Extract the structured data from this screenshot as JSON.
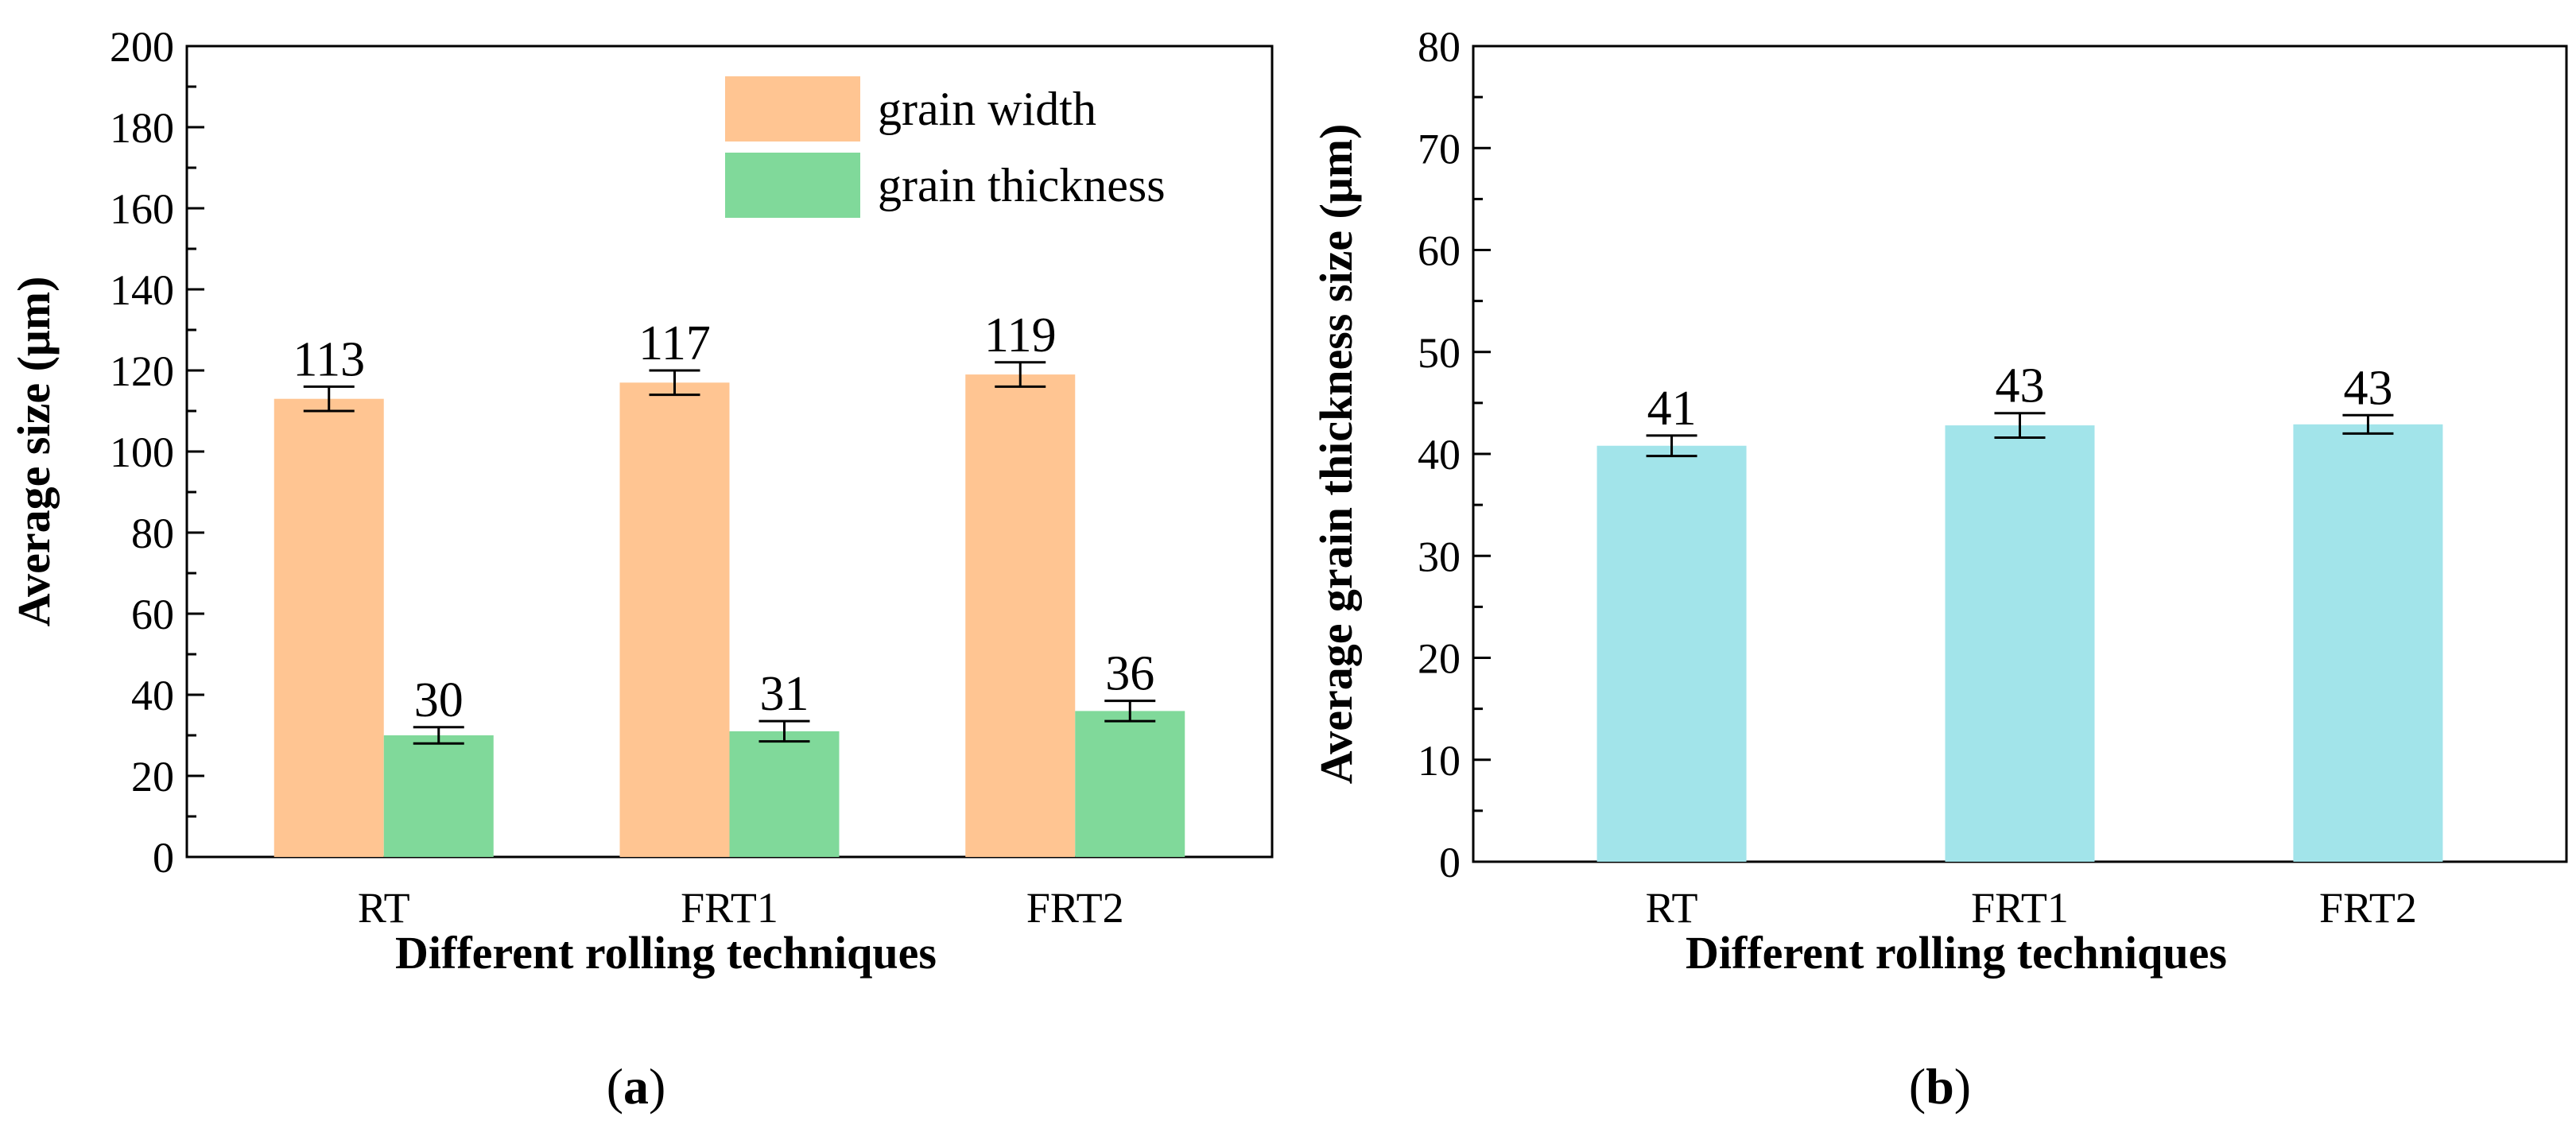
{
  "chart_data": [
    {
      "id": "a",
      "type": "bar",
      "caption_letter": "a",
      "categories": [
        "RT",
        "FRT1",
        "FRT2"
      ],
      "series": [
        {
          "name": "grain width",
          "color": "#FFC592",
          "values": [
            113,
            117,
            119
          ],
          "errors": [
            3,
            3,
            3
          ],
          "labels": [
            "113",
            "117",
            "119"
          ]
        },
        {
          "name": "grain thickness",
          "color": "#80D99A",
          "values": [
            30,
            31,
            36
          ],
          "errors": [
            2,
            2.5,
            2.5
          ],
          "labels": [
            "30",
            "31",
            "36"
          ]
        }
      ],
      "xlabel": "Different rolling techniques",
      "ylabel": "Average size  (μm)",
      "ylim": [
        0,
        200
      ],
      "yticks": [
        0,
        20,
        40,
        60,
        80,
        100,
        120,
        140,
        160,
        180,
        200
      ],
      "legend_position": "top-right"
    },
    {
      "id": "b",
      "type": "bar",
      "caption_letter": "b",
      "categories": [
        "RT",
        "FRT1",
        "FRT2"
      ],
      "series": [
        {
          "name": "grain thickness",
          "color": "#A2E4EA",
          "values": [
            40.8,
            42.8,
            42.9
          ],
          "errors": [
            1,
            1.2,
            0.9
          ],
          "labels": [
            "41",
            "43",
            "43"
          ]
        }
      ],
      "xlabel": "Different rolling techniques",
      "ylabel": "Average grain thickness size (μm)",
      "ylim": [
        0,
        80
      ],
      "yticks": [
        0,
        10,
        20,
        30,
        40,
        50,
        60,
        70,
        80
      ]
    }
  ]
}
